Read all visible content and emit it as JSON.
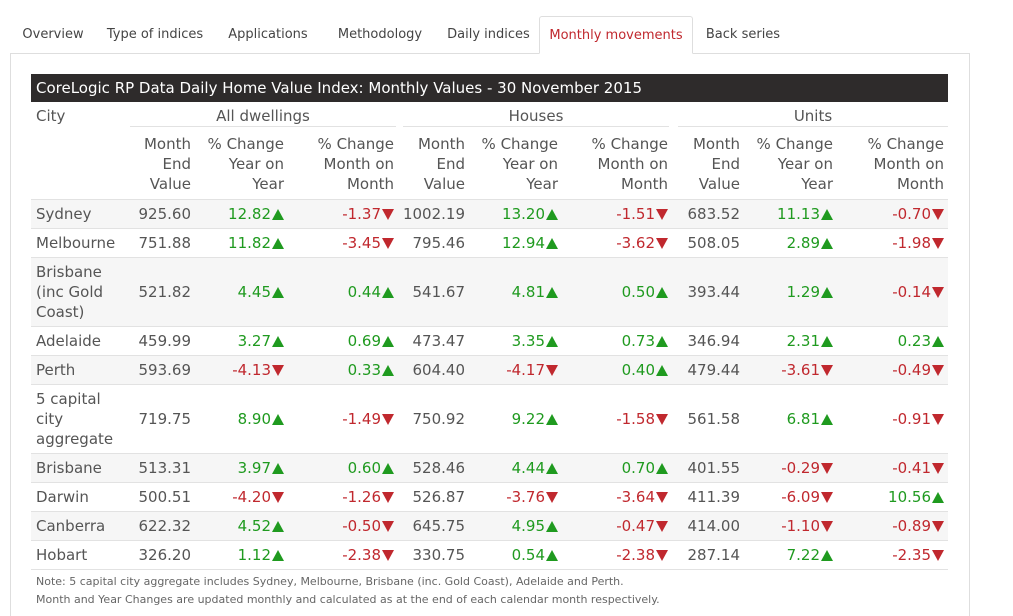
{
  "tabs": [
    {
      "label": "Overview",
      "active": false
    },
    {
      "label": "Type of indices",
      "active": false
    },
    {
      "label": "Applications",
      "active": false
    },
    {
      "label": "Methodology",
      "active": false
    },
    {
      "label": "Daily indices",
      "active": false
    },
    {
      "label": "Monthly movements",
      "active": true
    },
    {
      "label": "Back series",
      "active": false
    }
  ],
  "table": {
    "title": "CoreLogic RP Data Daily Home Value Index: Monthly Values - 30 November 2015",
    "city_header": "City",
    "groups": [
      "All dwellings",
      "Houses",
      "Units"
    ],
    "sub_headers": [
      "Month\nEnd\nValue",
      "% Change\nYear on\nYear",
      "% Change\nMonth on\nMonth"
    ],
    "rows": [
      {
        "city": "Sydney",
        "values": [
          "925.60",
          "12.82",
          "-1.37",
          "1002.19",
          "13.20",
          "-1.51",
          "683.52",
          "11.13",
          "-0.70"
        ]
      },
      {
        "city": "Melbourne",
        "values": [
          "751.88",
          "11.82",
          "-3.45",
          "795.46",
          "12.94",
          "-3.62",
          "508.05",
          "2.89",
          "-1.98"
        ]
      },
      {
        "city": "Brisbane (inc Gold Coast)",
        "values": [
          "521.82",
          "4.45",
          "0.44",
          "541.67",
          "4.81",
          "0.50",
          "393.44",
          "1.29",
          "-0.14"
        ]
      },
      {
        "city": "Adelaide",
        "values": [
          "459.99",
          "3.27",
          "0.69",
          "473.47",
          "3.35",
          "0.73",
          "346.94",
          "2.31",
          "0.23"
        ]
      },
      {
        "city": "Perth",
        "values": [
          "593.69",
          "-4.13",
          "0.33",
          "604.40",
          "-4.17",
          "0.40",
          "479.44",
          "-3.61",
          "-0.49"
        ]
      },
      {
        "city": "5 capital city aggregate",
        "values": [
          "719.75",
          "8.90",
          "-1.49",
          "750.92",
          "9.22",
          "-1.58",
          "561.58",
          "6.81",
          "-0.91"
        ]
      },
      {
        "city": "Brisbane",
        "values": [
          "513.31",
          "3.97",
          "0.60",
          "528.46",
          "4.44",
          "0.70",
          "401.55",
          "-0.29",
          "-0.41"
        ]
      },
      {
        "city": "Darwin",
        "values": [
          "500.51",
          "-4.20",
          "-1.26",
          "526.87",
          "-3.76",
          "-3.64",
          "411.39",
          "-6.09",
          "10.56"
        ]
      },
      {
        "city": "Canberra",
        "values": [
          "622.32",
          "4.52",
          "-0.50",
          "645.75",
          "4.95",
          "-0.47",
          "414.00",
          "-1.10",
          "-0.89"
        ]
      },
      {
        "city": "Hobart",
        "values": [
          "326.20",
          "1.12",
          "-2.38",
          "330.75",
          "0.54",
          "-2.38",
          "287.14",
          "7.22",
          "-2.35"
        ]
      }
    ],
    "notes": [
      "Note: 5 capital city aggregate includes Sydney, Melbourne, Brisbane (inc. Gold Coast), Adelaide and Perth.",
      "Month and Year Changes are updated monthly and calculated as at the end of each calendar month respectively."
    ]
  },
  "colors": {
    "positive": "#1f9a1f",
    "negative": "#c0282e",
    "title_bar": "#2e2b2b",
    "active_tab": "#c0282e"
  },
  "icons": {
    "up": "triangle-up-icon",
    "down": "triangle-down-icon"
  }
}
